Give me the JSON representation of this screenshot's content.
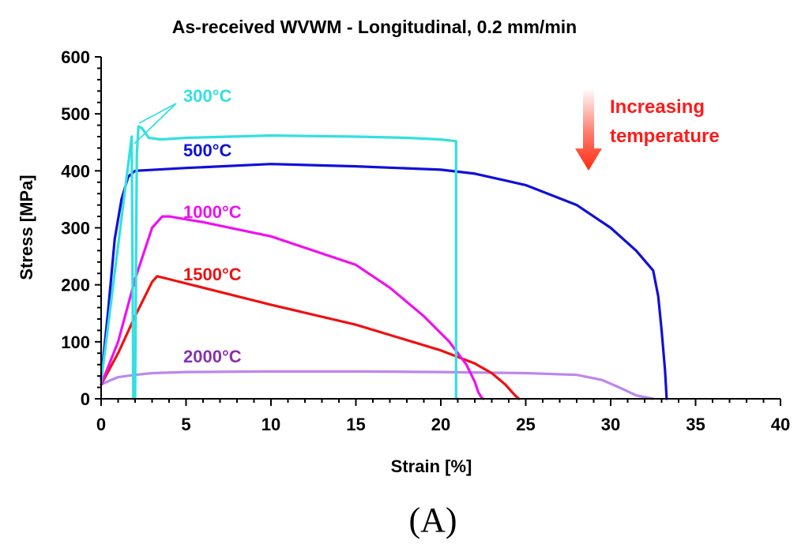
{
  "colors": {
    "c300": "#33e0e0",
    "c500": "#1010d8",
    "c1000": "#ee11ee",
    "c1500": "#ee1111",
    "c2000": "#bb88ee",
    "annotation": "#ff1a1a"
  },
  "panel_label": "(A)",
  "annotation": {
    "line1": "Increasing",
    "line2": "temperature",
    "icon": "down-arrow-icon"
  },
  "chart_data": {
    "type": "line",
    "title": "As-received WVWM - Longitudinal, 0.2 mm/min",
    "xlabel": "Strain [%]",
    "ylabel": "Stress [MPa]",
    "xlim": [
      0,
      40
    ],
    "ylim": [
      0,
      600
    ],
    "xticks": [
      "0",
      "5",
      "10",
      "15",
      "20",
      "25",
      "30",
      "35",
      "40"
    ],
    "yticks": [
      "0",
      "100",
      "200",
      "300",
      "400",
      "500",
      "600"
    ],
    "grid": false,
    "series": [
      {
        "name": "300°C",
        "color": "#33e0e0",
        "x": [
          0,
          1.8,
          1.9,
          2,
          2.1,
          2.2,
          2.4,
          2.8,
          3.5,
          5,
          10,
          15,
          18,
          20,
          20.9,
          20.9,
          21
        ],
        "y": [
          30,
          460,
          0,
          0,
          430,
          478,
          475,
          458,
          455,
          458,
          462,
          460,
          458,
          455,
          452,
          0,
          0
        ]
      },
      {
        "name": "500°C",
        "color": "#1010d8",
        "x": [
          0,
          0.4,
          0.8,
          1.2,
          1.6,
          2,
          5,
          10,
          15,
          20,
          22,
          25,
          28,
          30,
          31.5,
          32.5,
          32.8,
          33.0,
          33.2,
          33.3
        ],
        "y": [
          35,
          150,
          280,
          350,
          390,
          400,
          405,
          412,
          408,
          402,
          395,
          375,
          340,
          300,
          260,
          225,
          180,
          120,
          50,
          0
        ]
      },
      {
        "name": "1000°C",
        "color": "#ee11ee",
        "x": [
          0,
          1,
          2,
          3,
          3.6,
          4,
          6,
          10,
          15,
          17,
          19,
          20.5,
          21.5,
          22,
          22.2,
          22.4,
          22.5
        ],
        "y": [
          25,
          100,
          210,
          300,
          320,
          320,
          310,
          285,
          235,
          195,
          145,
          100,
          60,
          30,
          12,
          2,
          0
        ]
      },
      {
        "name": "1500°C",
        "color": "#ee1111",
        "x": [
          0,
          1,
          2,
          3,
          3.3,
          4,
          6,
          10,
          15,
          20,
          22,
          23,
          23.8,
          24.4,
          24.6
        ],
        "y": [
          25,
          80,
          145,
          205,
          215,
          210,
          195,
          165,
          130,
          85,
          62,
          45,
          25,
          5,
          0
        ]
      },
      {
        "name": "2000°C",
        "color": "#bb88ee",
        "x": [
          0,
          0.5,
          1,
          2,
          3,
          5,
          10,
          15,
          20,
          25,
          28,
          29.5,
          30.5,
          31.5,
          32.5
        ],
        "y": [
          25,
          32,
          38,
          42,
          45,
          47,
          48,
          48,
          47,
          45,
          42,
          33,
          20,
          6,
          0
        ]
      }
    ]
  }
}
